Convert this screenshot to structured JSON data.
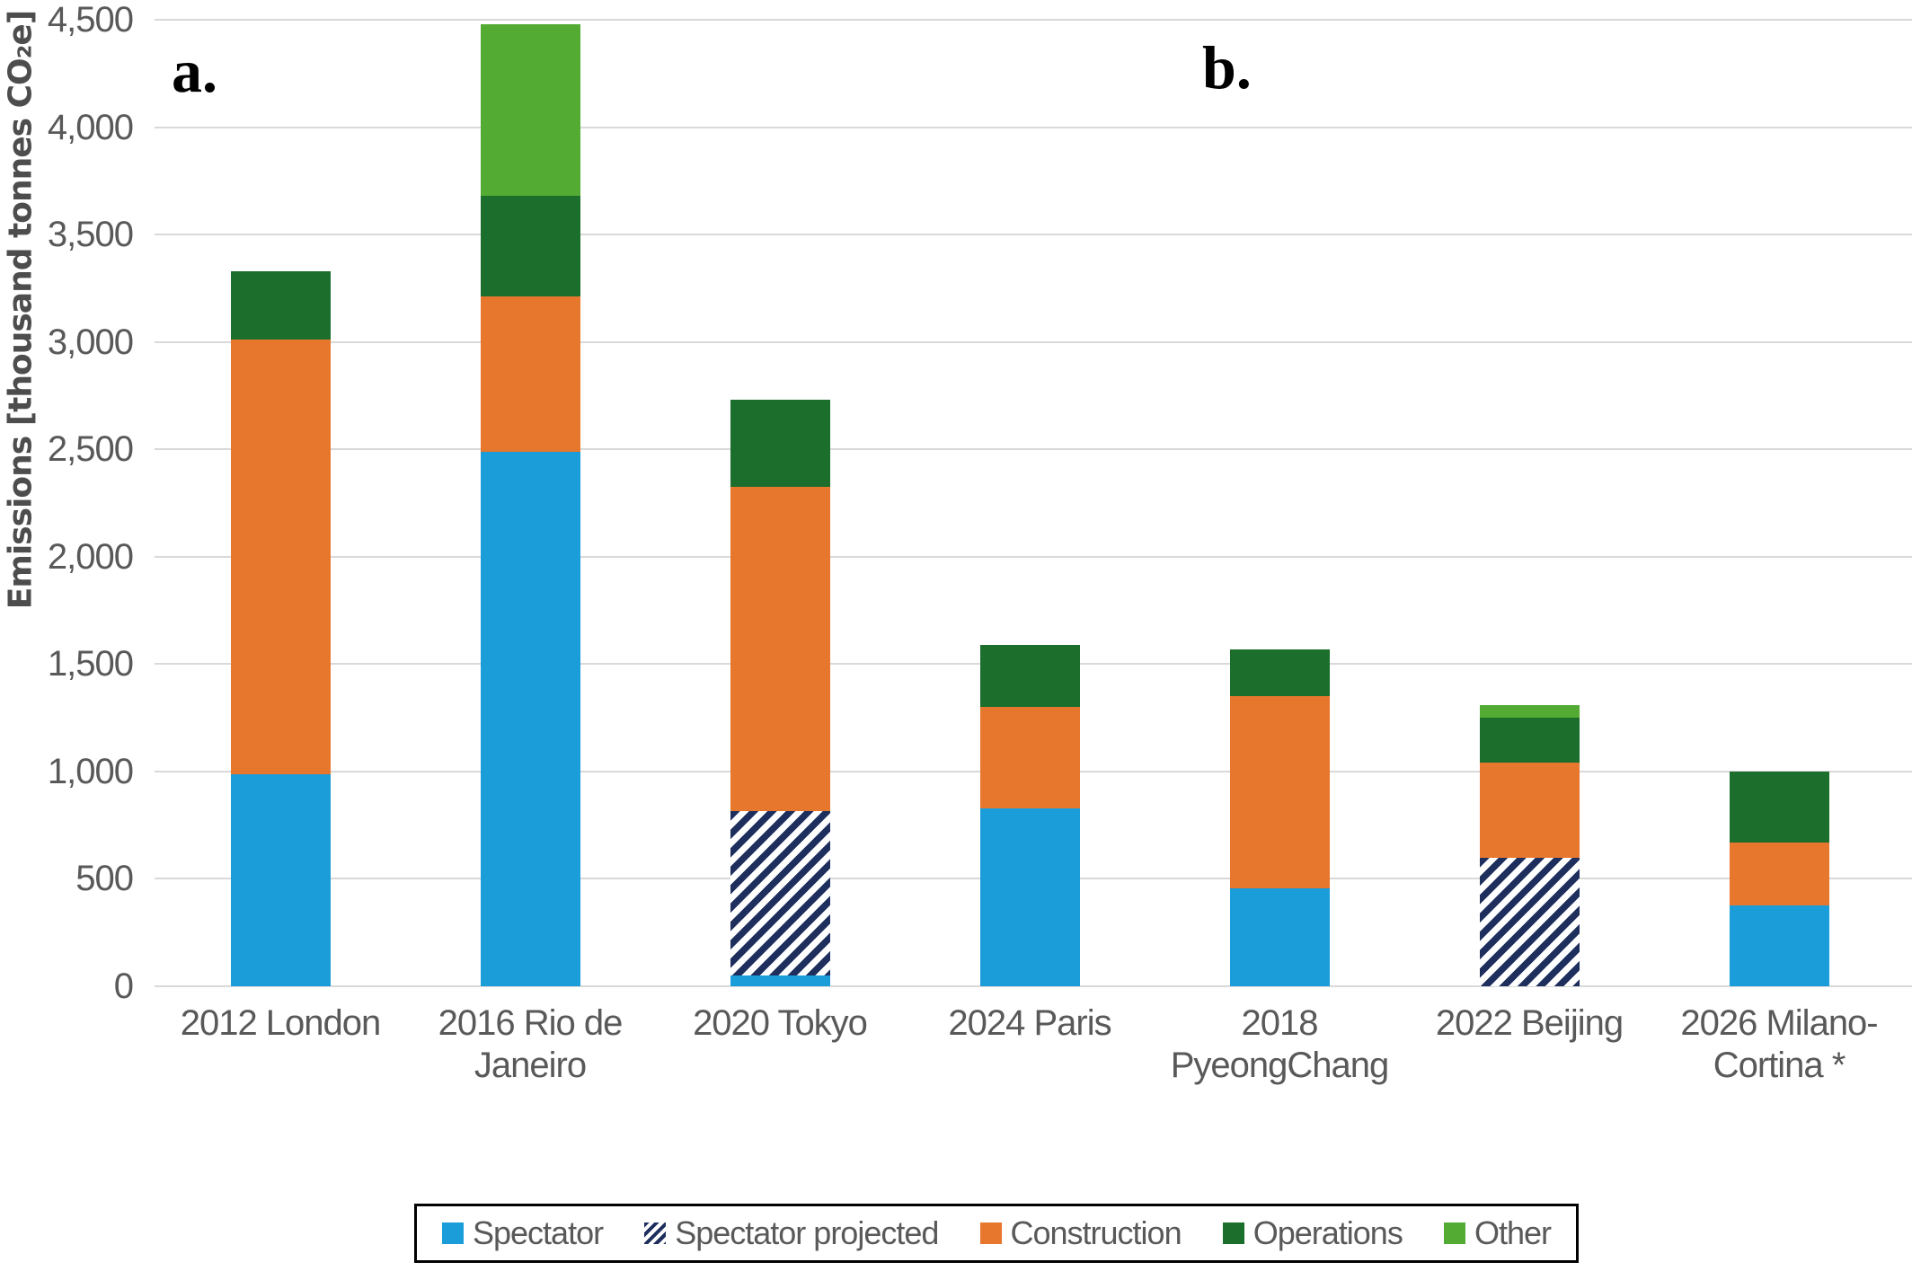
{
  "chart_data": {
    "type": "bar",
    "stacked": true,
    "title": "",
    "xlabel": "",
    "ylabel": "Emissions [thousand tonnes CO₂e]",
    "ylim": [
      0,
      4500
    ],
    "ytick_step": 500,
    "yticks": [
      "0",
      "500",
      "1,000",
      "1,500",
      "2,000",
      "2,500",
      "3,000",
      "3,500",
      "4,000",
      "4,500"
    ],
    "grid": "horizontal",
    "legend_position": "bottom",
    "panel_labels": {
      "a": "a.",
      "b": "b."
    },
    "series": [
      {
        "name": "Spectator",
        "key": "spectator",
        "color": "#1A9DD9",
        "pattern": "solid"
      },
      {
        "name": "Spectator projected",
        "key": "spectator_projected",
        "color": "#1E2F5E",
        "pattern": "diagonal-hatch"
      },
      {
        "name": "Construction",
        "key": "construction",
        "color": "#E8772E",
        "pattern": "solid"
      },
      {
        "name": "Operations",
        "key": "operations",
        "color": "#1C6E2D",
        "pattern": "solid"
      },
      {
        "name": "Other",
        "key": "other",
        "color": "#53AB34",
        "pattern": "solid"
      }
    ],
    "bars": [
      {
        "category": "2012 London",
        "label_lines": [
          "2012 London"
        ],
        "segments": [
          [
            "spectator",
            985
          ],
          [
            "construction",
            2025
          ],
          [
            "operations",
            320
          ]
        ],
        "total": 3330
      },
      {
        "category": "2016 Rio de Janeiro",
        "label_lines": [
          "2016 Rio de",
          "Janeiro"
        ],
        "segments": [
          [
            "spectator",
            2490
          ],
          [
            "construction",
            720
          ],
          [
            "operations",
            470
          ],
          [
            "other",
            800
          ]
        ],
        "total": 4480
      },
      {
        "category": "2020 Tokyo",
        "label_lines": [
          "2020 Tokyo"
        ],
        "segments": [
          [
            "spectator",
            50
          ],
          [
            "spectator_projected",
            765
          ],
          [
            "construction",
            1510
          ],
          [
            "operations",
            405
          ]
        ],
        "total": 2730
      },
      {
        "category": "2024 Paris",
        "label_lines": [
          "2024 Paris"
        ],
        "segments": [
          [
            "spectator",
            830
          ],
          [
            "construction",
            470
          ],
          [
            "operations",
            290
          ]
        ],
        "total": 1590
      },
      {
        "category": "2018 PyeongChang",
        "label_lines": [
          "2018",
          "PyeongChang"
        ],
        "segments": [
          [
            "spectator",
            455
          ],
          [
            "construction",
            895
          ],
          [
            "operations",
            220
          ]
        ],
        "total": 1570
      },
      {
        "category": "2022 Beijing",
        "label_lines": [
          "2022 Beijing"
        ],
        "segments": [
          [
            "spectator_projected",
            600
          ],
          [
            "construction",
            440
          ],
          [
            "operations",
            210
          ],
          [
            "other",
            60
          ]
        ],
        "total": 1310
      },
      {
        "category": "2026 Milano-Cortina *",
        "label_lines": [
          "2026 Milano-",
          "Cortina *"
        ],
        "segments": [
          [
            "spectator",
            375
          ],
          [
            "construction",
            295
          ],
          [
            "operations",
            330
          ]
        ],
        "total": 1000
      }
    ],
    "legend": [
      "Spectator",
      "Spectator projected",
      "Construction",
      "Operations",
      "Other"
    ]
  },
  "colors": {
    "gridline": "#D9D9D9",
    "tick_text": "#595959",
    "axis_title_text": "#4d4d4d",
    "legend_border": "#000000",
    "background": "#ffffff"
  }
}
